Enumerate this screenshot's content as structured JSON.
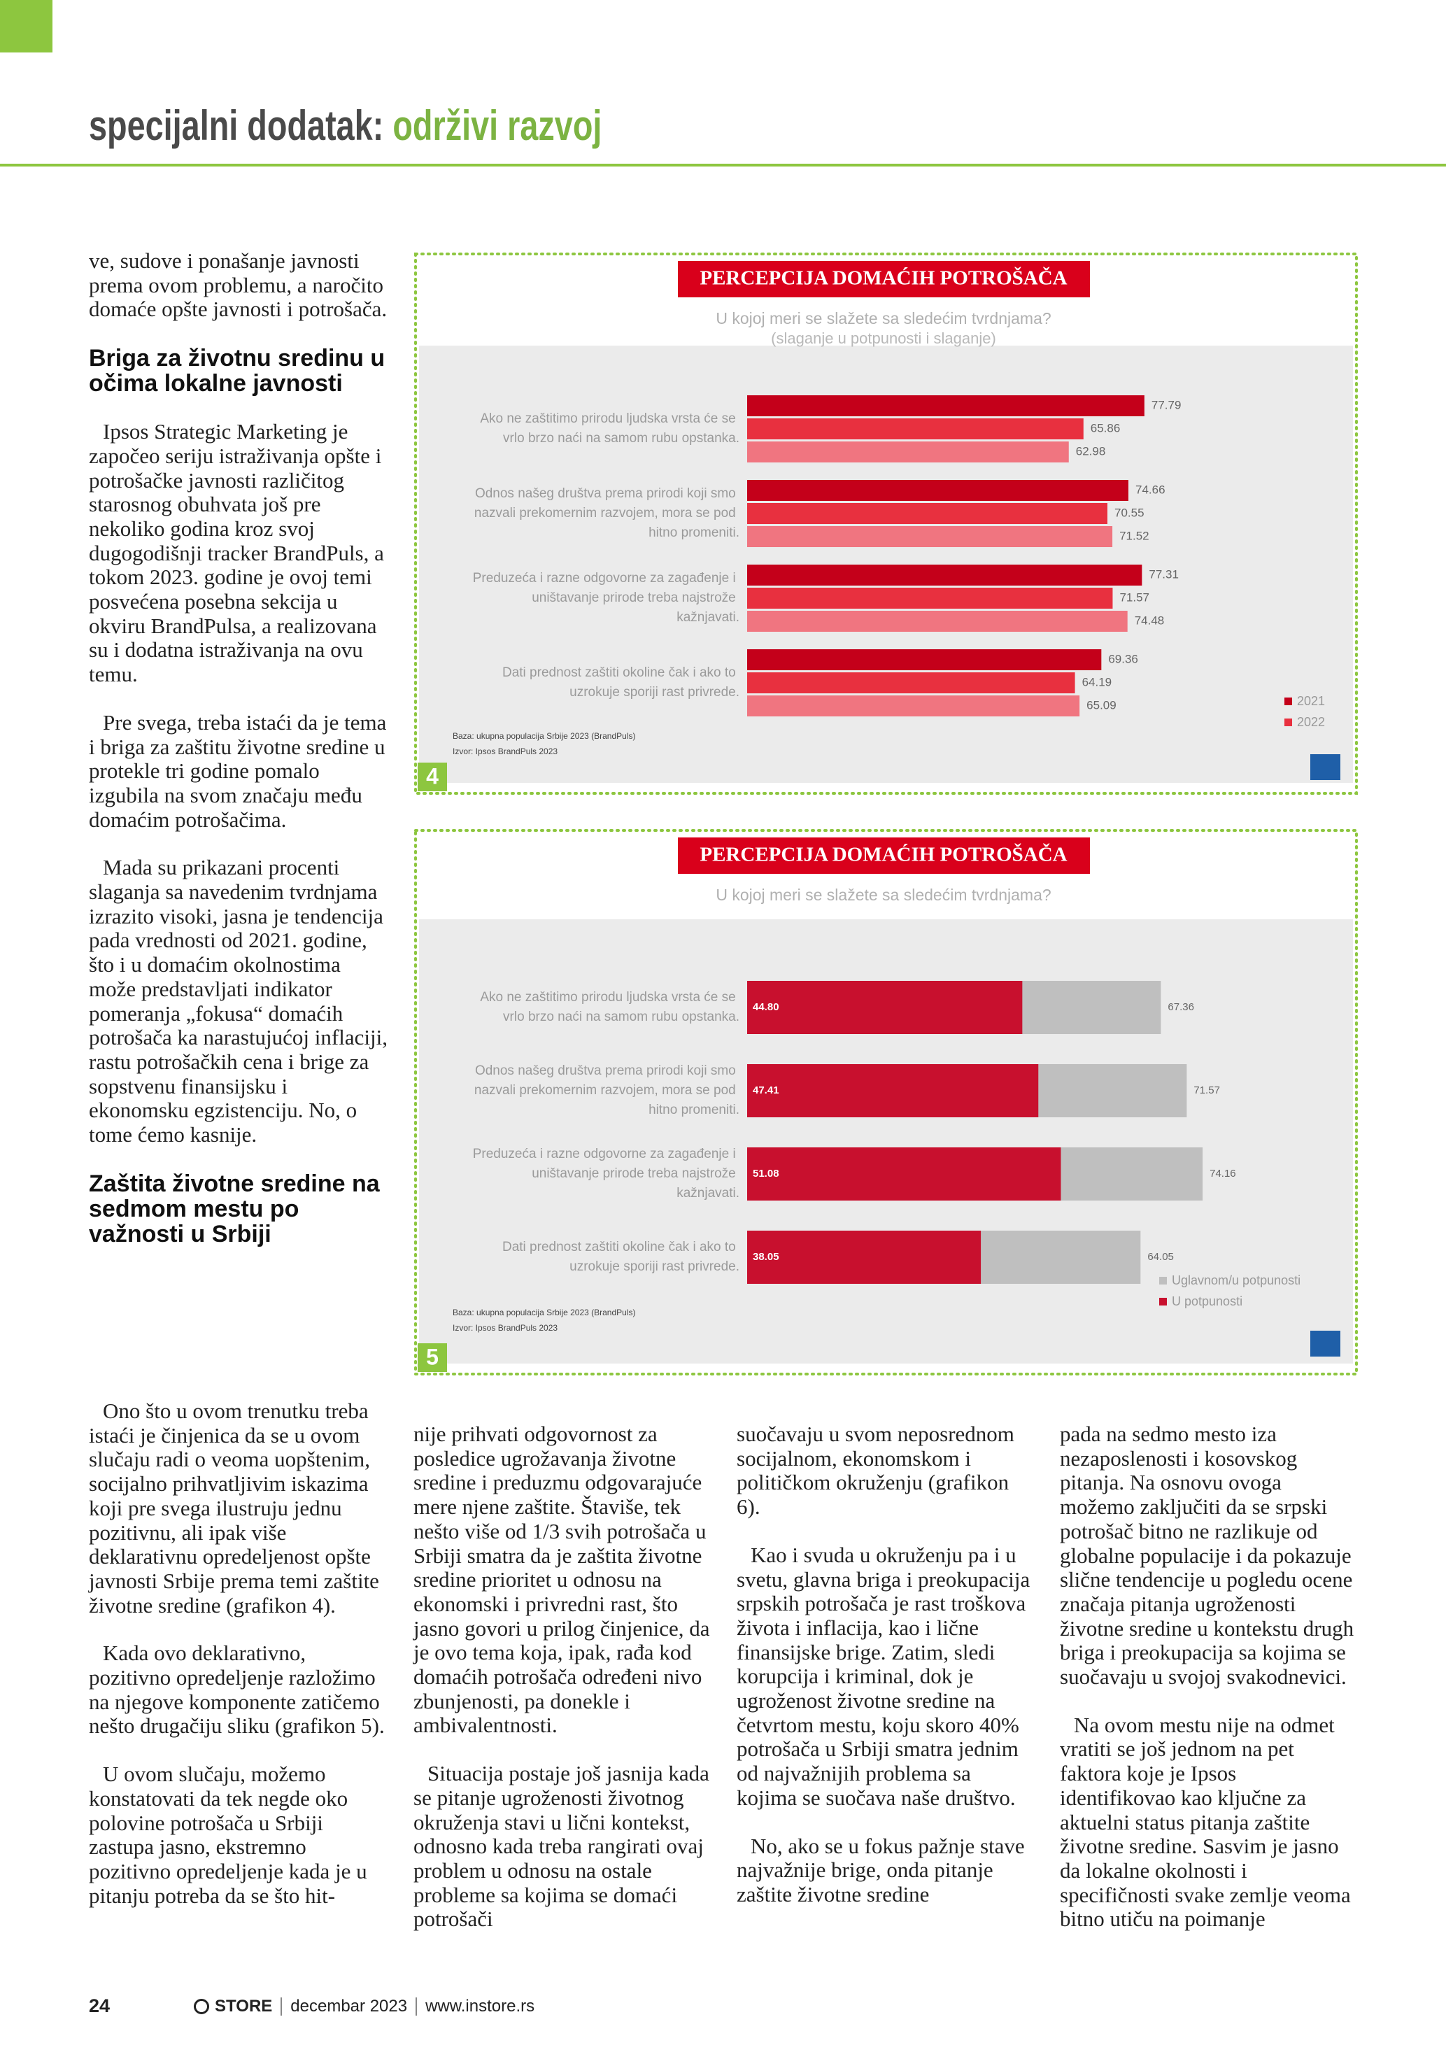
{
  "header": {
    "section": "specijalni dodatak:",
    "topic": "održivi razvoj"
  },
  "columns": [
    [
      {
        "text": "ve, sudove i ponašanje javnosti prema ovom problemu, a naročito domaće opšte javnosti i potrošača."
      },
      {
        "heading": "Briga za životnu sredinu u očima lokalne javnosti"
      },
      {
        "text": "Ipsos Strategic Marketing je započeo seriju istraživanja opšte i potrošačke javnosti različitog starosnog obuhvata još pre nekoliko godina kroz svoj dugogodišnji tracker BrandPuls, a tokom 2023. godine je ovoj temi posvećena posebna sekcija u okviru BrandPulsa, a realizovana su i dodatna istraživanja na ovu temu."
      },
      {
        "text": "Pre svega, treba istaći da je tema i briga za zaštitu životne sredine u protekle tri godine pomalo izgubila na svom značaju među domaćim potrošačima."
      },
      {
        "text": "Mada su prikazani procenti slaganja sa navedenim tvrdnjama izrazito visoki, jasna je tendencija pada vrednosti od 2021. godine, što i u domaćim okolnostima može predstavljati indikator pomeranja „fokusa“ domaćih potrošača ka narastujućoj inflaciji, rastu potrošačkih cena i brige za sopstvenu finansijsku i ekonomsku egzistenciju. No, o tome ćemo kasnije."
      },
      {
        "heading": "Zaštita životne sredine na sedmom mestu po važnosti u Srbiji"
      }
    ],
    [
      {
        "text": "Ono što u ovom trenutku treba istaći je činjenica da se u ovom slučaju radi o veoma uopštenim, socijalno prihvatljivim iskazima koji pre svega ilustruju jednu pozitivnu, ali ipak više deklarativnu opredeljenost opšte javnosti Srbije prema temi zaštite životne sredine (grafikon 4)."
      },
      {
        "text": "Kada ovo deklarativno, pozitivno opredeljenje razložimo na njegove komponente zatičemo nešto drugačiju sliku (grafikon 5)."
      },
      {
        "text": "U ovom slučaju, možemo konstatovati da tek negde oko polovine potrošača u Srbiji zastupa jasno, ekstremno pozitivno opredeljenje kada je u pitanju potreba da se što hit-"
      }
    ],
    [
      {
        "text": "nije prihvati odgovornost za posledice ugrožavanja životne sredine i preduzmu odgovarajuće mere njene zaštite. Štaviše, tek nešto više od 1/3 svih potrošača u Srbiji smatra da je zaštita životne sredine prioritet u odnosu na ekonomski i privredni rast, što jasno govori u prilog činjenice, da je ovo tema koja, ipak, rađa kod domaćih potrošača određeni nivo zbunjenosti, pa donekle i ambivalentnosti."
      },
      {
        "text": "Situacija postaje još jasnija kada se pitanje ugroženosti životnog okruženja stavi u lični kontekst, odnosno kada treba rangirati ovaj problem u odnosu na ostale probleme sa kojima se domaći potrošači"
      }
    ],
    [
      {
        "text": "suočavaju u svom neposrednom socijalnom, ekonomskom i političkom okruženju (grafikon 6)."
      },
      {
        "text": "Kao i svuda u okruženju pa i u svetu, glavna briga i preokupacija srpskih potrošača je rast troškova života i inflacija, kao i lične finansijske brige. Zatim, sledi korupcija i kriminal, dok je ugroženost životne sredine na četvrtom mestu, koju skoro 40% potrošača u Srbiji smatra jednim od najvažnijih problema sa kojima se suočava naše društvo."
      },
      {
        "text": "No, ako se u fokus pažnje stave najvažnije brige, onda pitanje zaštite životne sredine"
      }
    ],
    [
      {
        "text": "pada na sedmo mesto iza nezaposlenosti i kosovskog pitanja. Na osnovu ovoga možemo zaključiti da se srpski potrošač bitno ne razlikuje od globalne populacije i da pokazuje slične tendencije u pogledu ocene značaja pitanja ugroženosti životne sredine u kontekstu drugh briga i preokupacija sa kojima se suočavaju u svojoj svakodnevici."
      },
      {
        "text": "Na ovom mestu nije na odmet vratiti se još jednom na pet faktora koje je Ipsos identifikovao kao ključne za aktuelni status pitanja zaštite životne sredine. Sasvim je jasno da lokalne okolnosti i specifičnosti svake zemlje veoma bitno utiču na poimanje"
      }
    ]
  ],
  "chart_data": [
    {
      "type": "bar",
      "barmode": "group",
      "figure": "4",
      "title": "PERCEPCIJA DOMAĆIH POTROŠAČA",
      "subtitle": "U kojoj meri se slažete sa sledećim tvrdnjama?",
      "note": "(slaganje u potpunosti i slaganje)",
      "categories": [
        "Ako ne zaštitimo prirodu ljudska vrsta će se vrlo brzo naći na samom rubu opstanka.",
        "Odnos našeg društva prema prirodi koji smo nazvali prekomernim razvojem, mora se pod hitno promeniti.",
        "Preduzeća i razne odgovorne za zagađenje i uništavanje prirode treba najstrože kažnjavati.",
        "Dati prednost zaštiti okoline čak i ako to uzrokuje sporiji rast privrede."
      ],
      "series": [
        {
          "name": "2021",
          "color": "#c4001a",
          "values": [
            77.79,
            74.66,
            77.31,
            69.36
          ],
          "value_labels": [
            "77.79",
            "74.66",
            "77.31",
            "69.36"
          ]
        },
        {
          "name": "2022",
          "color": "#e8303f",
          "values": [
            65.86,
            70.55,
            71.57,
            64.19
          ],
          "value_labels": [
            "65.86",
            "70.55",
            "71.57",
            "64.19"
          ]
        },
        {
          "color": "#f07580",
          "values": [
            62.98,
            71.52,
            74.48,
            65.09
          ],
          "value_labels": [
            "62.98",
            "71.52",
            "74.48",
            "65.09"
          ]
        }
      ],
      "xlim": [
        0,
        80
      ],
      "source": [
        "Baza: ukupna populacija Srbije 2023 (BrandPuls)",
        "Izvor: Ipsos BrandPuls 2023"
      ]
    },
    {
      "type": "bar",
      "barmode": "overlay",
      "figure": "5",
      "title": "PERCEPCIJA DOMAĆIH POTROŠAČA",
      "subtitle": "U kojoj meri se slažete sa sledećim tvrdnjama?",
      "categories": [
        "Ako ne zaštitimo prirodu ljudska vrsta će se vrlo brzo naći na samom rubu opstanka.",
        "Odnos našeg društva prema prirodi koji smo nazvali prekomernim razvojem, mora se pod hitno promeniti.",
        "Preduzeća i razne odgovorne za zagađenje i uništavanje prirode treba najstrože kažnjavati.",
        "Dati prednost zaštiti okoline čak i ako to uzrokuje sporiji rast privrede."
      ],
      "series": [
        {
          "name": "Uglavnom/u potpunosti",
          "color": "#bfbfbf",
          "values": [
            67.36,
            71.57,
            74.16,
            64.05
          ],
          "value_labels": [
            "67.36",
            "71.57",
            "74.16",
            "64.05"
          ]
        },
        {
          "name": "U potpunosti",
          "color": "#c8102e",
          "values": [
            44.8,
            47.41,
            51.08,
            38.05
          ],
          "value_labels": [
            "44.80",
            "47.41",
            "51.08",
            "38.05"
          ]
        }
      ],
      "xlim": [
        0,
        100
      ],
      "source": [
        "Baza: ukupna populacija Srbije 2023 (BrandPuls)",
        "Izvor: Ipsos BrandPuls 2023"
      ]
    }
  ],
  "footer": {
    "page": "24",
    "brand": "STORE",
    "issue": "decembar 2023",
    "url": "www.instore.rs"
  }
}
